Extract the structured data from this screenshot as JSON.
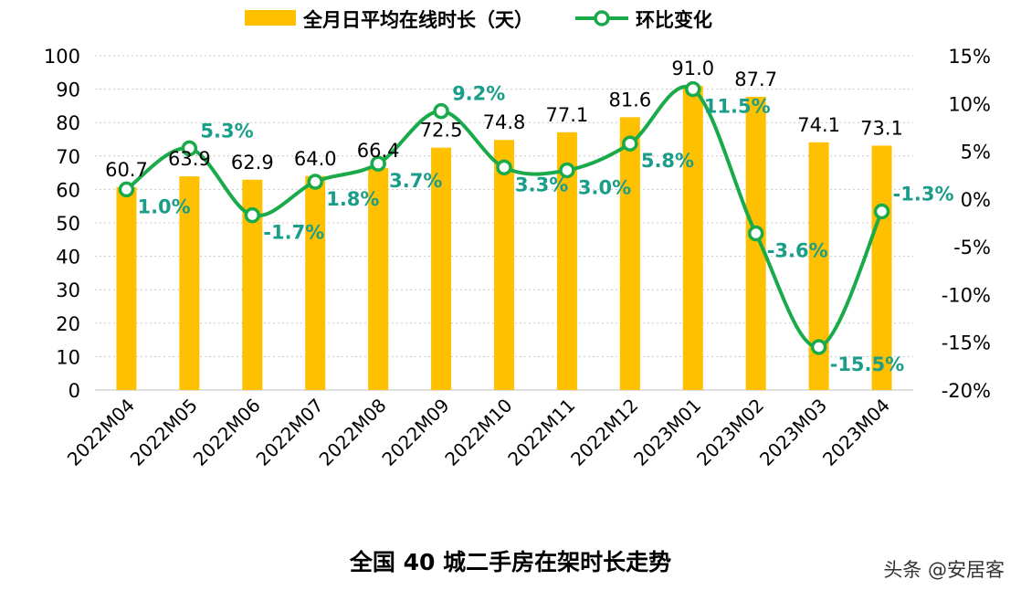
{
  "chart_data": {
    "type": "bar+line",
    "title": "全国 40 城二手房在架时长走势",
    "legend_position": "top",
    "categories": [
      "2022M04",
      "2022M05",
      "2022M06",
      "2022M07",
      "2022M08",
      "2022M09",
      "2022M10",
      "2022M11",
      "2022M12",
      "2023M01",
      "2023M02",
      "2023M03",
      "2023M04"
    ],
    "series": [
      {
        "name": "全月日平均在线时长（天）",
        "type": "bar",
        "axis": "left",
        "color": "#FFC000",
        "values": [
          60.7,
          63.9,
          62.9,
          64.0,
          66.4,
          72.5,
          74.8,
          77.1,
          81.6,
          91.0,
          87.7,
          74.1,
          73.1
        ],
        "labels": [
          "60.7",
          "63.9",
          "62.9",
          "64.0",
          "66.4",
          "72.5",
          "74.8",
          "77.1",
          "81.6",
          "91.0",
          "87.7",
          "74.1",
          "73.1"
        ]
      },
      {
        "name": "环比变化",
        "type": "line",
        "axis": "right",
        "color": "#1AAA4A",
        "label_color": "#1A9E8A",
        "values": [
          1.0,
          5.3,
          -1.7,
          1.8,
          3.7,
          9.2,
          3.3,
          3.0,
          5.8,
          11.5,
          -3.6,
          -15.5,
          -1.3
        ],
        "labels": [
          "1.0%",
          "5.3%",
          "-1.7%",
          "1.8%",
          "3.7%",
          "9.2%",
          "3.3%",
          "3.0%",
          "5.8%",
          "11.5%",
          "-3.6%",
          "-15.5%",
          "-1.3%"
        ]
      }
    ],
    "y_left": {
      "range": [
        0,
        100
      ],
      "ticks": [
        "0",
        "10",
        "20",
        "30",
        "40",
        "50",
        "60",
        "70",
        "80",
        "90",
        "100"
      ]
    },
    "y_right": {
      "range": [
        -20,
        15
      ],
      "ticks": [
        "-20%",
        "-15%",
        "-10%",
        "-5%",
        "0%",
        "5%",
        "10%",
        "15%"
      ]
    },
    "grid": true
  },
  "watermark": "头条 @安居客"
}
